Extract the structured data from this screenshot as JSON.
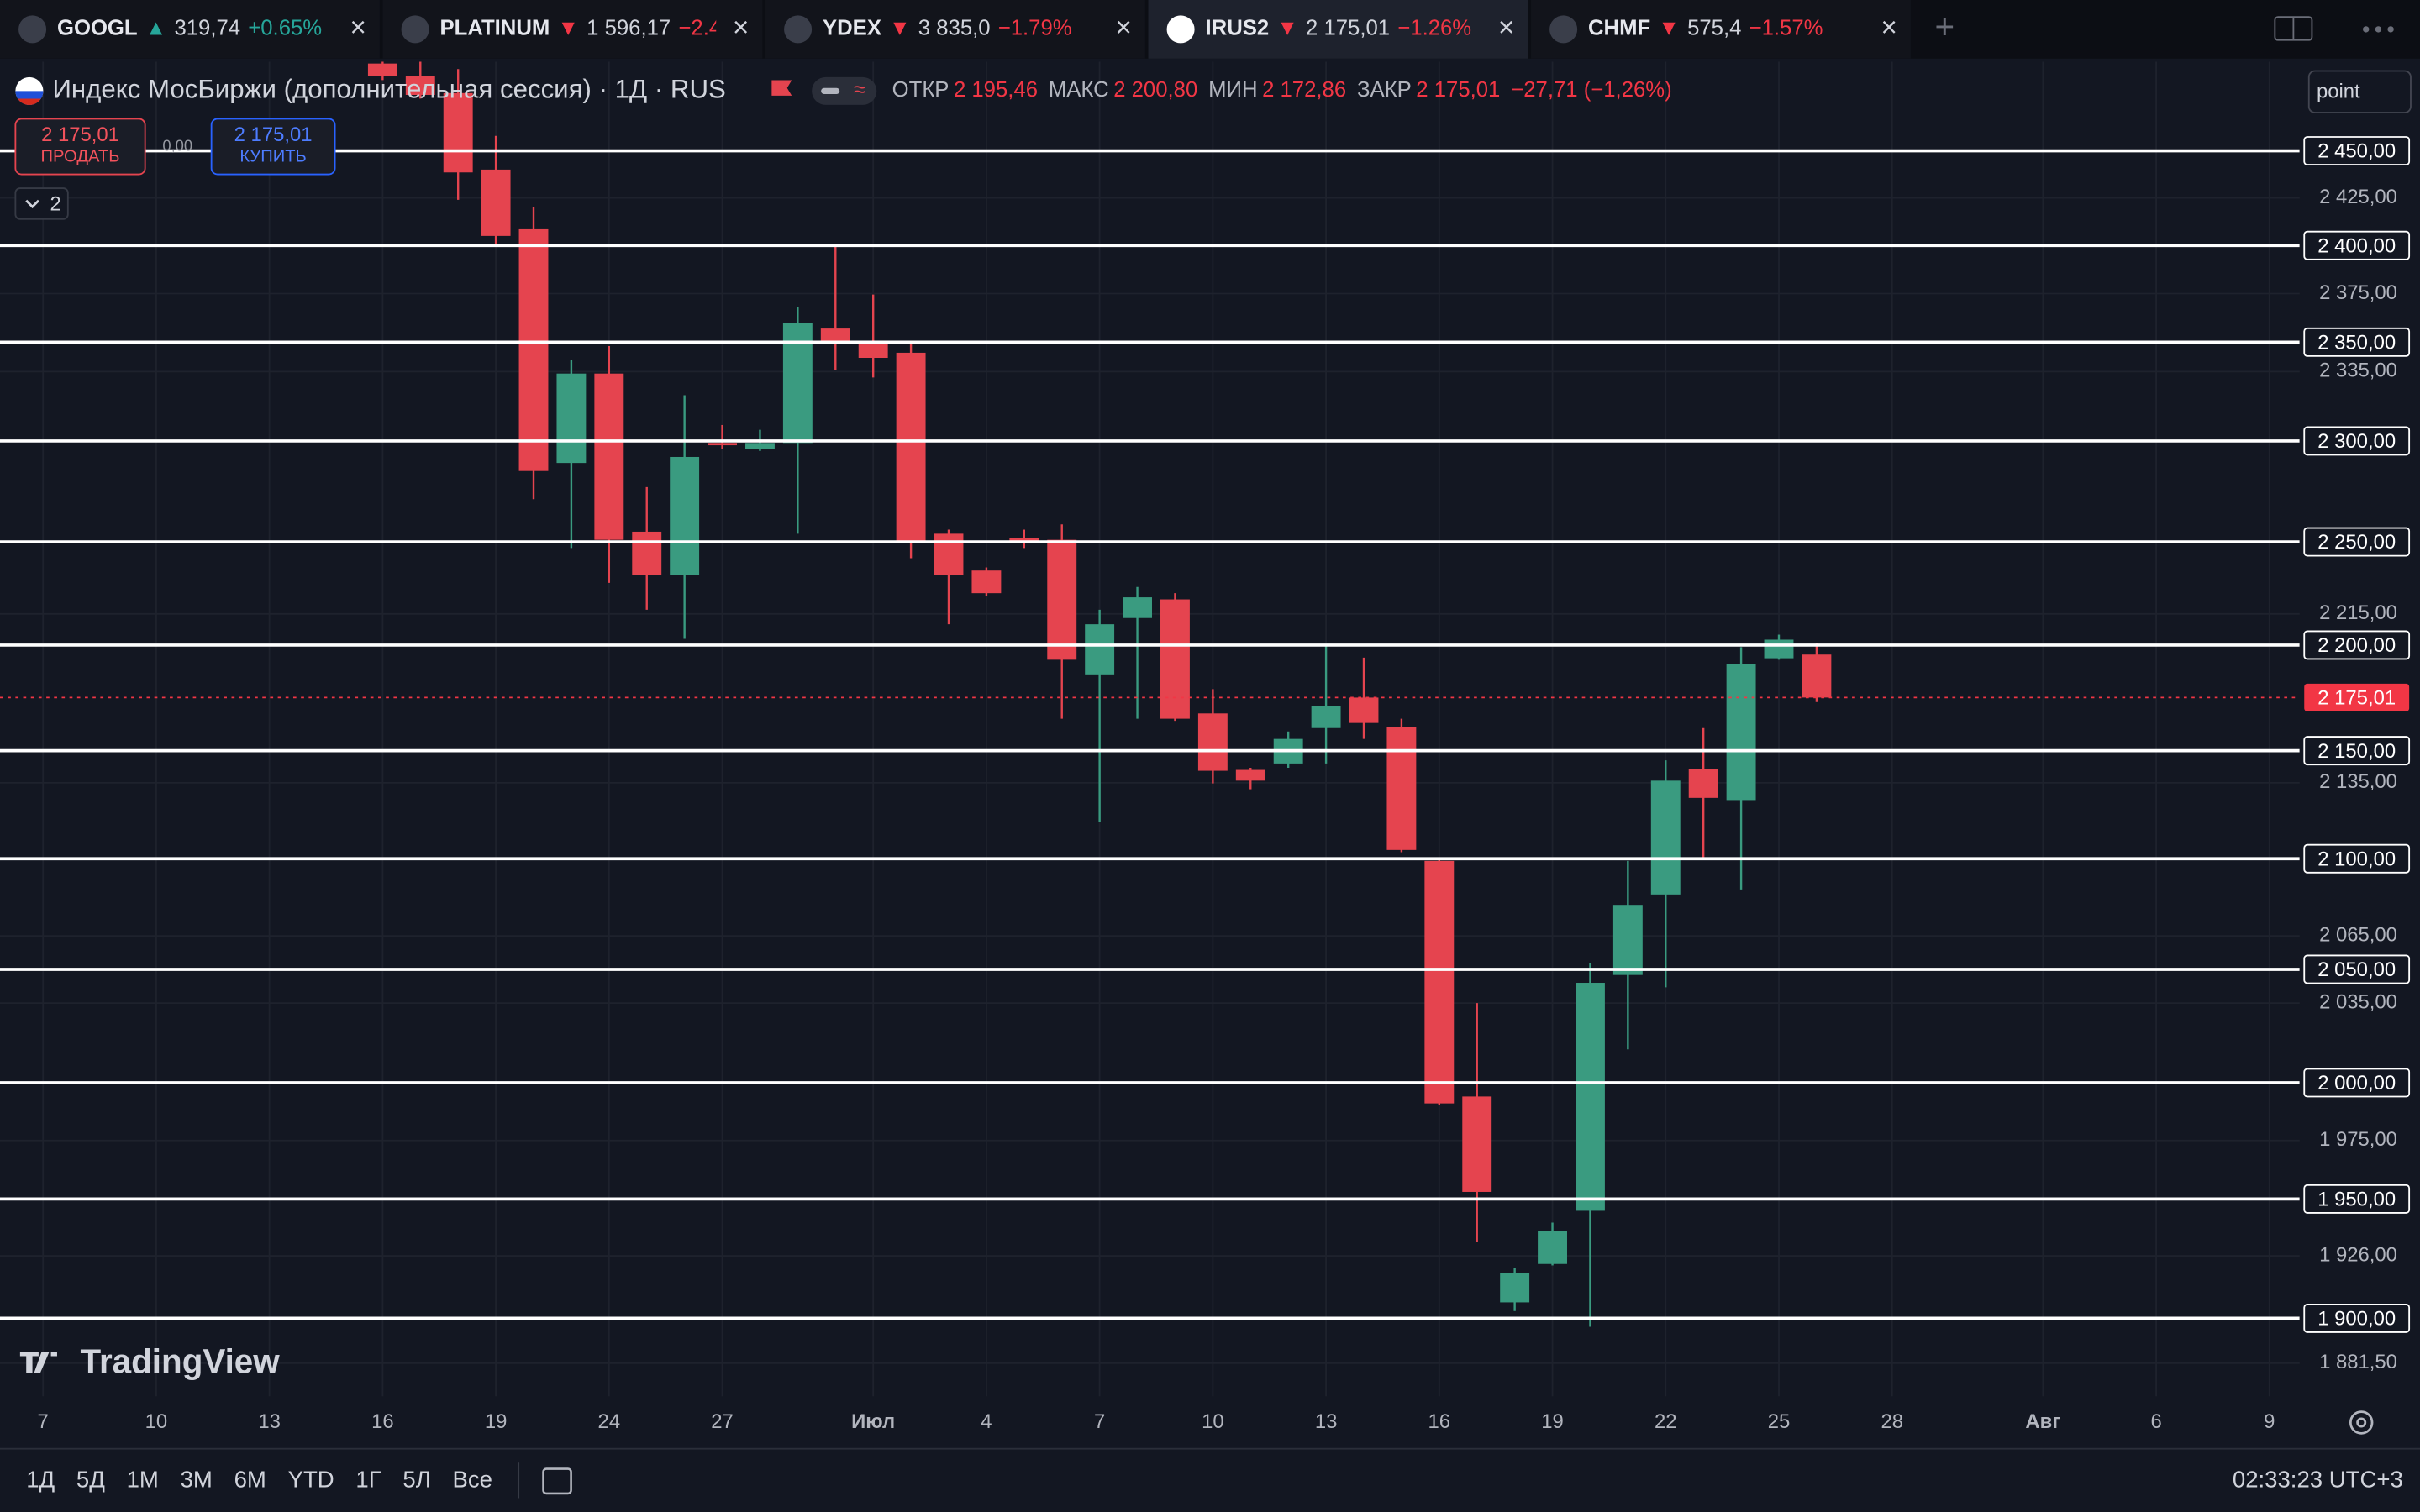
{
  "active_tab": 3,
  "tabs": [
    {
      "symbol": "GOOGL",
      "arrow": "▲",
      "price": "319,74",
      "change": "+0.65%",
      "dir": "up"
    },
    {
      "symbol": "PLATINUM",
      "arrow": "▼",
      "price": "1 596,17",
      "change": "−2.4",
      "dir": "down"
    },
    {
      "symbol": "YDEX",
      "arrow": "▼",
      "price": "3 835,0",
      "change": "−1.79%",
      "dir": "down"
    },
    {
      "symbol": "IRUS2",
      "arrow": "▼",
      "price": "2 175,01",
      "change": "−1.26%",
      "dir": "down"
    },
    {
      "symbol": "CHMF",
      "arrow": "▼",
      "price": "575,4",
      "change": "−1.57%",
      "dir": "down"
    }
  ],
  "header": {
    "title": "Индекс МосБиржи (дополнительная сессия) · 1Д · RUS",
    "open_label": "ОТКР",
    "open": "2 195,46",
    "high_label": "МАКС",
    "high": "2 200,80",
    "low_label": "МИН",
    "low": "2 172,86",
    "close_label": "ЗАКР",
    "close": "2 175,01",
    "change": "−27,71 (−1,26%)"
  },
  "trade": {
    "sell_price": "2 175,01",
    "sell": "ПРОДАТЬ",
    "spread": "0,00",
    "buy_price": "2 175,01",
    "buy": "КУПИТЬ"
  },
  "indicators_count": "2",
  "input": "point",
  "logo": "TradingView",
  "timeframes": [
    "1Д",
    "5Д",
    "1М",
    "3М",
    "6М",
    "YTD",
    "1Г",
    "5Л",
    "Все"
  ],
  "clock": "02:33:23 UTC+3",
  "chart_data": {
    "type": "candlestick",
    "log_scale": true,
    "grid": true,
    "up_color": "#3a9b80",
    "down_color": "#e5444f",
    "x": [
      0,
      1,
      2,
      3,
      4,
      5,
      6,
      7,
      8,
      9,
      10,
      11,
      12,
      13,
      14,
      15,
      16,
      17,
      18,
      19,
      20,
      21,
      22,
      23,
      24,
      25,
      26,
      27,
      28,
      29,
      30,
      31,
      32,
      33,
      34,
      35,
      36,
      37,
      38
    ],
    "open": [
      2497,
      2490,
      2481,
      2440,
      2408.5,
      2289,
      2334,
      2255,
      2234,
      2299,
      2296,
      2299,
      2357,
      2350,
      2344.6,
      2254,
      2236,
      2252,
      2251,
      2186,
      2213,
      2222,
      2167.5,
      2141,
      2144,
      2160.6,
      2175,
      2161,
      2099,
      1994,
      1906.6,
      1922.6,
      1945,
      2047.5,
      2083.7,
      2141.5,
      2127,
      2193.7,
      2195.46
    ],
    "high": [
      2500,
      2500,
      2494,
      2458,
      2420,
      2341,
      2348,
      2277,
      2323,
      2308,
      2305.6,
      2368,
      2401,
      2374.5,
      2350,
      2256,
      2237.5,
      2256,
      2258.6,
      2217,
      2228,
      2225,
      2179,
      2142,
      2159,
      2200.4,
      2194,
      2165,
      2100.5,
      2035,
      1921,
      1940,
      2052.6,
      2099,
      2145.5,
      2160.6,
      2199,
      2205,
      2200.8
    ],
    "low": [
      2488,
      2478,
      2424,
      2401,
      2271,
      2247,
      2230,
      2217,
      2203,
      2296,
      2295,
      2254,
      2336,
      2332,
      2242,
      2210,
      2223.5,
      2247,
      2165,
      2117,
      2165,
      2164,
      2134.7,
      2132,
      2142,
      2144,
      2155.5,
      2103,
      1990.5,
      1932,
      1903,
      1922,
      1896.5,
      2014.6,
      2042,
      2099.5,
      2086,
      2193,
      2172.86
    ],
    "close": [
      2490,
      2480,
      2438.5,
      2405,
      2285,
      2334,
      2251,
      2234,
      2292,
      2298,
      2299,
      2360,
      2349,
      2342,
      2250,
      2234,
      2225,
      2250,
      2193,
      2210,
      2223,
      2165,
      2140.6,
      2136,
      2155.5,
      2171,
      2163,
      2104,
      1991,
      1953,
      1919,
      1936.6,
      2044,
      2079,
      2136,
      2128,
      2191,
      2202.6,
      2175.01
    ],
    "xlim": [
      -10.14,
      50.8
    ],
    "xticks": [
      {
        "value": -9,
        "label": "7"
      },
      {
        "value": -6,
        "label": "10"
      },
      {
        "value": -3,
        "label": "13"
      },
      {
        "value": 0,
        "label": "16"
      },
      {
        "value": 3,
        "label": "19"
      },
      {
        "value": 6,
        "label": "24"
      },
      {
        "value": 9,
        "label": "27"
      },
      {
        "value": 13,
        "label": "Июл"
      },
      {
        "value": 16,
        "label": "4"
      },
      {
        "value": 19,
        "label": "7"
      },
      {
        "value": 22,
        "label": "10"
      },
      {
        "value": 25,
        "label": "13"
      },
      {
        "value": 28,
        "label": "16"
      },
      {
        "value": 31,
        "label": "19"
      },
      {
        "value": 34,
        "label": "22"
      },
      {
        "value": 37,
        "label": "25"
      },
      {
        "value": 40,
        "label": "28"
      },
      {
        "value": 44,
        "label": "Авг"
      },
      {
        "value": 47,
        "label": "6"
      },
      {
        "value": 50,
        "label": "9"
      }
    ],
    "ylim": [
      1868,
      2498
    ],
    "yticks": [
      {
        "value": 2425,
        "label": "2 425,00"
      },
      {
        "value": 2375,
        "label": "2 375,00"
      },
      {
        "value": 2335,
        "label": "2 335,00"
      },
      {
        "value": 2215,
        "label": "2 215,00"
      },
      {
        "value": 2135,
        "label": "2 135,00"
      },
      {
        "value": 2065,
        "label": "2 065,00"
      },
      {
        "value": 2035,
        "label": "2 035,00"
      },
      {
        "value": 1975,
        "label": "1 975,00"
      },
      {
        "value": 1926,
        "label": "1 926,00"
      },
      {
        "value": 1881.5,
        "label": "1 881,50"
      }
    ],
    "hlines": [
      {
        "value": 2450,
        "label": "2 450,00"
      },
      {
        "value": 2400,
        "label": "2 400,00"
      },
      {
        "value": 2350,
        "label": "2 350,00"
      },
      {
        "value": 2300,
        "label": "2 300,00"
      },
      {
        "value": 2250,
        "label": "2 250,00"
      },
      {
        "value": 2200,
        "label": "2 200,00"
      },
      {
        "value": 2150,
        "label": "2 150,00"
      },
      {
        "value": 2100,
        "label": "2 100,00"
      },
      {
        "value": 2050,
        "label": "2 050,00"
      },
      {
        "value": 2000,
        "label": "2 000,00"
      },
      {
        "value": 1950,
        "label": "1 950,00"
      },
      {
        "value": 1900,
        "label": "1 900,00"
      }
    ],
    "last_price": {
      "value": 2175.01,
      "label": "2 175,01"
    }
  }
}
